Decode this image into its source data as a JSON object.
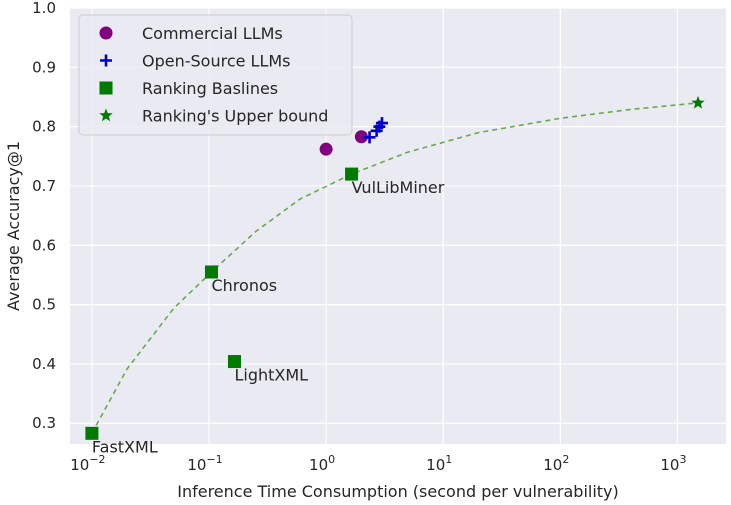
{
  "chart_data": {
    "type": "scatter",
    "title": "",
    "xlabel": "Inference Time Consumption (second per vulnerability)",
    "ylabel": "Average Accuracy@1",
    "xscale": "log",
    "xlim": [
      0.0065,
      2600
    ],
    "ylim": [
      0.265,
      1.0
    ],
    "xticks": [
      {
        "value": 0.01,
        "base": "10",
        "exp": "−2"
      },
      {
        "value": 0.1,
        "base": "10",
        "exp": "−1"
      },
      {
        "value": 1,
        "base": "10",
        "exp": "0"
      },
      {
        "value": 10,
        "base": "10",
        "exp": "1"
      },
      {
        "value": 100,
        "base": "10",
        "exp": "2"
      },
      {
        "value": 1000,
        "base": "10",
        "exp": "3"
      }
    ],
    "yticks": [
      "0.3",
      "0.4",
      "0.5",
      "0.6",
      "0.7",
      "0.8",
      "0.9",
      "1.0"
    ],
    "grid": true,
    "legend_position": "top-left",
    "background_color": "#eaeaf2",
    "series": [
      {
        "name": "Commercial LLMs",
        "marker": "circle",
        "color": "#800080",
        "points": [
          {
            "x": 1.0,
            "y": 0.762
          },
          {
            "x": 2.0,
            "y": 0.783
          }
        ]
      },
      {
        "name": "Open-Source LLMs",
        "marker": "plus",
        "color": "#0000cc",
        "points": [
          {
            "x": 2.35,
            "y": 0.782
          },
          {
            "x": 2.7,
            "y": 0.793
          },
          {
            "x": 2.85,
            "y": 0.8
          },
          {
            "x": 3.0,
            "y": 0.806
          }
        ]
      },
      {
        "name": "Ranking Baslines",
        "marker": "square",
        "color": "#007a00",
        "points": [
          {
            "x": 0.01,
            "y": 0.283,
            "label": "FastXML"
          },
          {
            "x": 0.105,
            "y": 0.555,
            "label": "Chronos"
          },
          {
            "x": 0.165,
            "y": 0.404,
            "label": "LightXML"
          },
          {
            "x": 1.65,
            "y": 0.72,
            "label": "VulLibMiner"
          }
        ]
      },
      {
        "name": "Ranking's Upper bound",
        "marker": "star",
        "color": "#007a00",
        "points": [
          {
            "x": 1500,
            "y": 0.84
          }
        ]
      }
    ],
    "trend_curve": {
      "style": "dashed",
      "color": "#6aa84f",
      "points": [
        [
          0.01,
          0.283
        ],
        [
          0.02,
          0.392
        ],
        [
          0.05,
          0.494
        ],
        [
          0.105,
          0.555
        ],
        [
          0.25,
          0.623
        ],
        [
          0.6,
          0.678
        ],
        [
          1.65,
          0.72
        ],
        [
          5,
          0.757
        ],
        [
          20,
          0.79
        ],
        [
          100,
          0.814
        ],
        [
          400,
          0.829
        ],
        [
          1500,
          0.84
        ]
      ]
    }
  }
}
